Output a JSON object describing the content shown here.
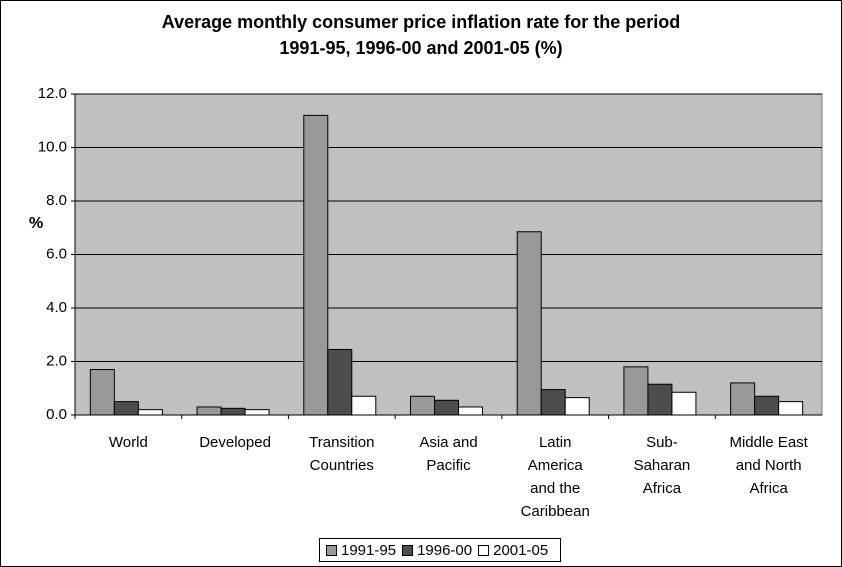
{
  "chart_data": {
    "type": "bar",
    "title": "Average monthly consumer price inflation rate for the period 1991-95, 1996-00 and 2001-05 (%)",
    "y_label": "%",
    "categories": [
      "World",
      "Developed",
      "Transition Countries",
      "Asia and Pacific",
      "Latin America and the Caribbean",
      "Sub-Saharan Africa",
      "Middle East and North Africa"
    ],
    "series": [
      {
        "name": "1991-95",
        "color": "#999999",
        "values": [
          1.7,
          0.3,
          11.2,
          0.7,
          6.85,
          1.8,
          1.2
        ]
      },
      {
        "name": "1996-00",
        "color": "#4d4d4d",
        "values": [
          0.5,
          0.25,
          2.45,
          0.55,
          0.95,
          1.15,
          0.7
        ]
      },
      {
        "name": "2001-05",
        "color": "#ffffff",
        "values": [
          0.2,
          0.2,
          0.7,
          0.3,
          0.65,
          0.85,
          0.5
        ]
      }
    ],
    "ylim": [
      0,
      12
    ],
    "yticks": [
      {
        "value": 0,
        "label": "0.0"
      },
      {
        "value": 2,
        "label": "2.0"
      },
      {
        "value": 4,
        "label": "4.0"
      },
      {
        "value": 6,
        "label": "6.0"
      },
      {
        "value": 8,
        "label": "8.0"
      },
      {
        "value": 10,
        "label": "10.0"
      },
      {
        "value": 12,
        "label": "12.0"
      }
    ],
    "grid": true,
    "plot_background": "#c0c0c0",
    "legend_position": "bottom"
  }
}
